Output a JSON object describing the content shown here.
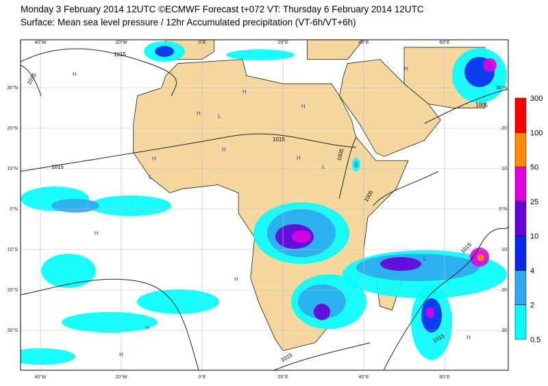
{
  "header": {
    "line1": "Monday 3 February 2014 12UTC ©ECMWF Forecast t+072 VT: Thursday 6 February 2014 12UTC",
    "line2": "Surface: Mean sea level pressure / 12hr Accumulated precipitation (VT-6h/VT+6h)"
  },
  "map": {
    "lon_labels": [
      "40°W",
      "20°W",
      "0°E",
      "20°E",
      "40°E",
      "60°E"
    ],
    "lat_labels": [
      "30°N",
      "20°N",
      "10°N",
      "0°N",
      "10°S",
      "20°S",
      "30°S"
    ],
    "lat_labels_right": [
      "30°N",
      "20",
      "10",
      "0°N",
      "10",
      "20",
      "30"
    ],
    "isobar_labels": [
      "1015",
      "1015",
      "1015",
      "1015",
      "1005",
      "1005",
      "1015",
      "1005",
      "1015",
      "1015"
    ],
    "pressure_centres": [
      "H",
      "H",
      "H",
      "H",
      "H",
      "H",
      "L",
      "L",
      "L",
      "H",
      "H",
      "L",
      "H",
      "H",
      "L",
      "H",
      "H",
      "H"
    ]
  },
  "colorbar": {
    "levels": [
      0.5,
      2,
      4,
      10,
      25,
      50,
      100,
      300
    ],
    "colors": [
      "#00ffff",
      "#2fa8f0",
      "#0a28f0",
      "#6a00d8",
      "#e000e0",
      "#ff8c00",
      "#ff0000"
    ]
  }
}
